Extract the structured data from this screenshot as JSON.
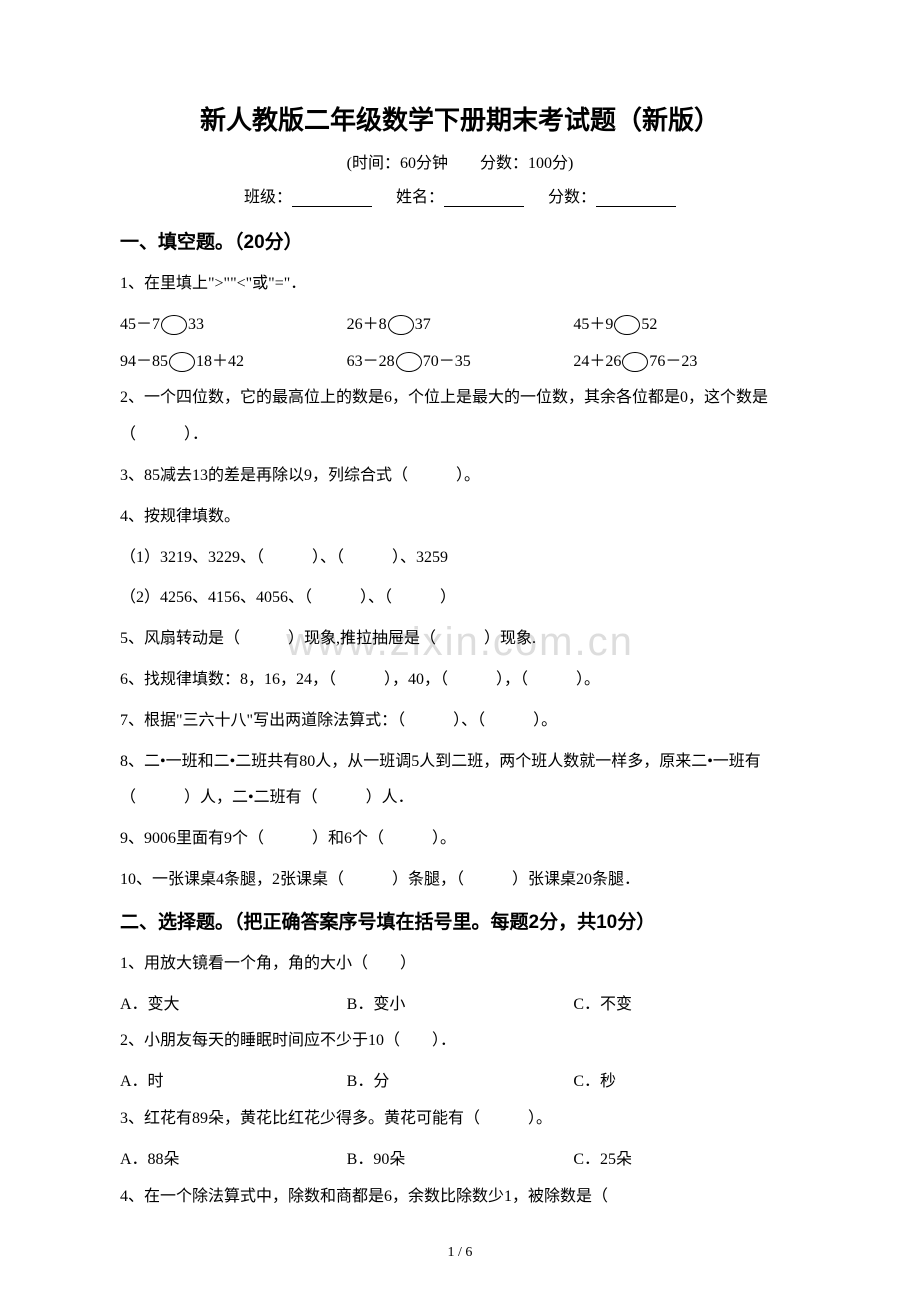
{
  "title": "新人教版二年级数学下册期末考试题（新版）",
  "subtitle": "(时间：60分钟　　分数：100分)",
  "info": {
    "class_label": "班级：",
    "name_label": "姓名：",
    "score_label": "分数："
  },
  "section1": {
    "heading": "一、填空题。（20分）",
    "q1": "1、在里填上\">\"\"<\"或\"=\"．",
    "q1_row1": {
      "a": "45－7",
      "a2": "33",
      "b": "26＋8",
      "b2": "37",
      "c": "45＋9",
      "c2": "52"
    },
    "q1_row2": {
      "a": "94－85",
      "a2": "18＋42",
      "b": "63－28",
      "b2": "70－35",
      "c": "24＋26",
      "c2": "76－23"
    },
    "q2": "2、一个四位数，它的最高位上的数是6，个位上是最大的一位数，其余各位都是0，这个数是（　　　）．",
    "q3": "3、85减去13的差是再除以9，列综合式（　　　）。",
    "q4": "4、按规律填数。",
    "q4_1": "（1）3219、3229、（　　　）、（　　　）、3259",
    "q4_2": "（2）4256、4156、4056、（　　　）、（　　　）",
    "q5": "5、风扇转动是（　　　）现象,推拉抽屉是（　　　）现象.",
    "q6": "6、找规律填数：8，16，24，（　　　），40，（　　　），（　　　）。",
    "q7": "7、根据\"三六十八\"写出两道除法算式：（　　　）、（　　　）。",
    "q8": "8、二•一班和二•二班共有80人，从一班调5人到二班，两个班人数就一样多，原来二•一班有（　　　）人，二•二班有（　　　）人．",
    "q9": "9、9006里面有9个（　　　）和6个（　　　）。",
    "q10": "10、一张课桌4条腿，2张课桌（　　　）条腿，（　　　）张课桌20条腿．"
  },
  "section2": {
    "heading": "二、选择题。（把正确答案序号填在括号里。每题2分，共10分）",
    "q1": "1、用放大镜看一个角，角的大小（　　）",
    "q1_choices": {
      "a": "A．变大",
      "b": "B．变小",
      "c": "C．不变"
    },
    "q2": "2、小朋友每天的睡眠时间应不少于10（　　）．",
    "q2_choices": {
      "a": "A．时",
      "b": "B．分",
      "c": "C．秒"
    },
    "q3": "3、红花有89朵，黄花比红花少得多。黄花可能有（　　　）。",
    "q3_choices": {
      "a": "A．88朵",
      "b": "B．90朵",
      "c": "C．25朵"
    },
    "q4": "4、在一个除法算式中，除数和商都是6，余数比除数少1，被除数是（"
  },
  "watermark": "www.zixin.com.cn",
  "page_num": "1 / 6"
}
